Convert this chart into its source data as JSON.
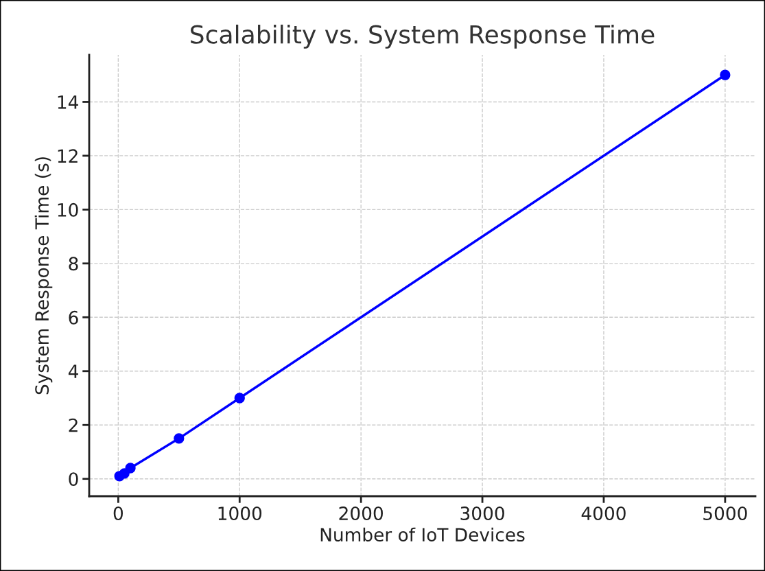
{
  "chart_data": {
    "type": "line",
    "title": "Scalability vs. System Response Time",
    "xlabel": "Number of IoT Devices",
    "ylabel": "System Response Time (s)",
    "x": [
      10,
      50,
      100,
      500,
      1000,
      5000
    ],
    "series": [
      {
        "color": "#0000ff",
        "values": [
          0.1,
          0.2,
          0.4,
          1.5,
          3,
          15
        ]
      }
    ],
    "xlim": [
      -239.5,
      5249.5
    ],
    "xticks": [
      0,
      1000,
      2000,
      3000,
      4000,
      5000
    ],
    "ylim": [
      -0.645,
      15.745
    ],
    "yticks": [
      0,
      2,
      4,
      6,
      8,
      10,
      12,
      14
    ],
    "grid": true,
    "marker": "circle",
    "line_style": "solid"
  }
}
